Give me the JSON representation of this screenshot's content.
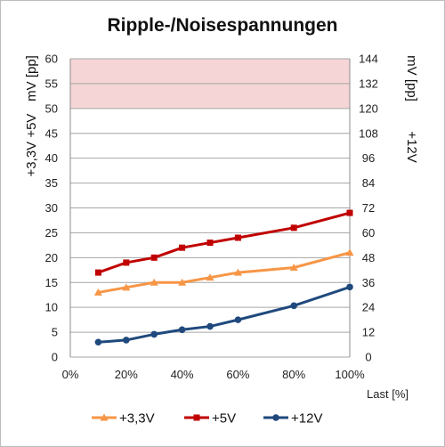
{
  "chart_data": {
    "type": "line",
    "title": "Ripple-/Noisespannungen",
    "xlabel": "Last [%]",
    "y_left": {
      "label_line1": "+3,3V +5V",
      "label_line2": "mV [pp]",
      "lim": [
        0,
        60
      ],
      "ticks": [
        "0",
        "5",
        "10",
        "15",
        "20",
        "25",
        "30",
        "35",
        "40",
        "45",
        "50",
        "55",
        "60"
      ]
    },
    "y_right": {
      "label_line1": "+12V",
      "label_line2": "mV [pp]",
      "lim": [
        0,
        144
      ],
      "ticks": [
        "0",
        "12",
        "24",
        "36",
        "48",
        "60",
        "72",
        "84",
        "96",
        "108",
        "120",
        "132",
        "144"
      ]
    },
    "x_lim": [
      0,
      100
    ],
    "x_ticks": [
      "0%",
      "20%",
      "40%",
      "60%",
      "80%",
      "100%"
    ],
    "x_tick_values": [
      0,
      20,
      40,
      60,
      80,
      100
    ],
    "limit_band": {
      "from": 50,
      "to": 60,
      "axis": "left",
      "color": "#f6d5d6"
    },
    "grid": true,
    "legend_position": "bottom",
    "series": [
      {
        "name": "+3,3V",
        "axis": "left",
        "color": "#f79646",
        "marker": "triangle",
        "x": [
          10,
          20,
          30,
          40,
          50,
          60,
          80,
          100
        ],
        "y": [
          13,
          14,
          15,
          15,
          16,
          17,
          18,
          21
        ]
      },
      {
        "name": "+5V",
        "axis": "left",
        "color": "#c00000",
        "marker": "square",
        "x": [
          10,
          20,
          30,
          40,
          50,
          60,
          80,
          100
        ],
        "y": [
          17,
          19,
          20,
          22,
          23,
          24,
          26,
          29
        ]
      },
      {
        "name": "+12V",
        "axis": "right",
        "color": "#1f497d",
        "marker": "circle",
        "x": [
          10,
          20,
          30,
          40,
          50,
          60,
          80,
          100
        ],
        "y": [
          7.2,
          8.2,
          11,
          13.2,
          14.8,
          18,
          24.8,
          33.8
        ]
      }
    ]
  }
}
